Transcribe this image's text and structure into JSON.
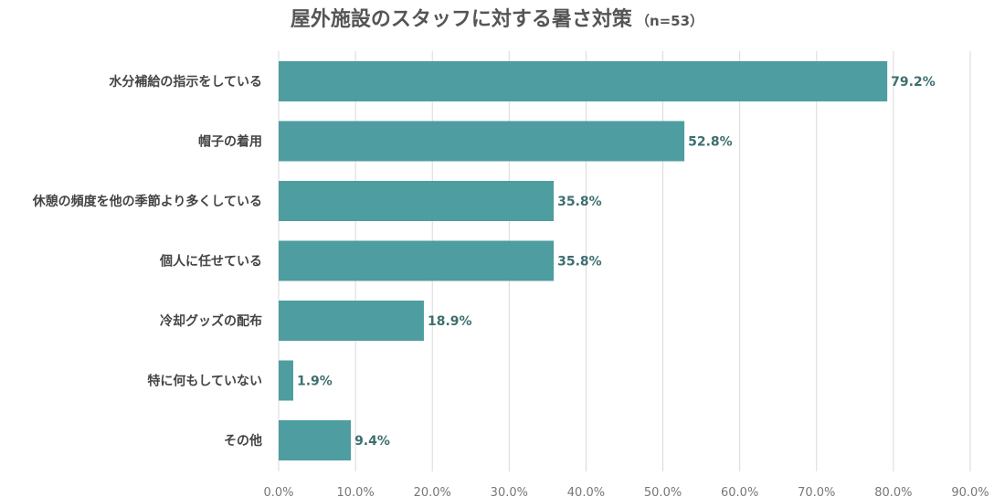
{
  "chart_data": {
    "type": "bar",
    "orientation": "horizontal",
    "title": "屋外施設のスタッフに対する暑さ対策",
    "subtitle": "（n=53）",
    "categories": [
      "水分補給の指示をしている",
      "帽子の着用",
      "休憩の頻度を他の季節より多くしている",
      "個人に任せている",
      "冷却グッズの配布",
      "特に何もしていない",
      "その他"
    ],
    "values": [
      79.2,
      52.8,
      35.8,
      35.8,
      18.9,
      1.9,
      9.4
    ],
    "value_labels": [
      "79.2%",
      "52.8%",
      "35.8%",
      "35.8%",
      "18.9%",
      "1.9%",
      "9.4%"
    ],
    "xlim": [
      0,
      90
    ],
    "xticks": [
      0,
      10,
      20,
      30,
      40,
      50,
      60,
      70,
      80,
      90
    ],
    "xtick_labels": [
      "0.0%",
      "10.0%",
      "20.0%",
      "30.0%",
      "40.0%",
      "50.0%",
      "60.0%",
      "70.0%",
      "80.0%",
      "90.0%"
    ],
    "grid": true,
    "legend": "none",
    "colors": {
      "bar": "#4e9da0",
      "data_label": "#3e6f70",
      "grid": "#d9d9d9",
      "title": "#555555"
    }
  }
}
